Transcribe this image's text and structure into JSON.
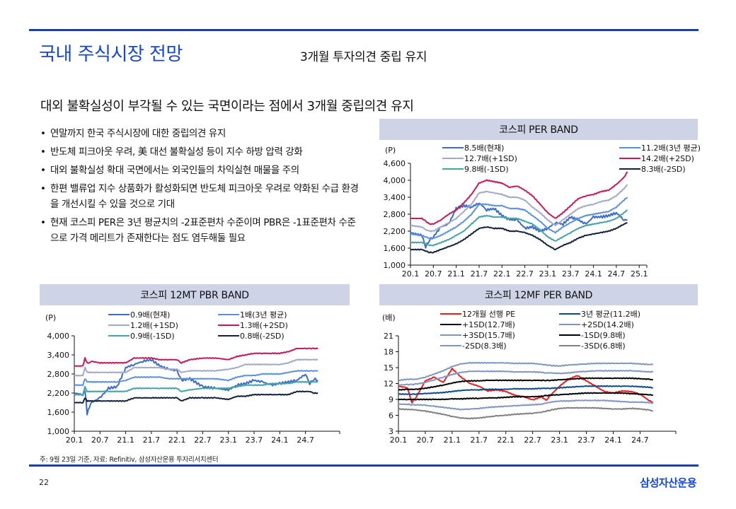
{
  "page": {
    "title": "국내 주식시장 전망",
    "subtitle": "3개월 투자의견 중립 유지",
    "headline": "대외 불확실성이 부각될 수 있는 국면이라는 점에서 3개월 중립의견 유지",
    "bullets": [
      "연말까지 한국 주식시장에 대한 중립의견 유지",
      "반도체 피크아웃 우려, 美 대선 불확실성 등이 지수 하방 압력 강화",
      "대외 불확실성 확대 국면에서는 외국인들의 차익실현 매물을 주의",
      "한편 밸류업 지수 상품화가 활성화되면 반도체 피크아웃 우려로 약화된 수급 환경을 개선시킬 수 있을 것으로 기대",
      "현재 코스피 PER은 3년 평균치의 -2표준편차 수준이며 PBR은 -1표준편차 수준으로 가격 메리트가 존재한다는 점도 염두해둘 필요"
    ],
    "note": "주: 9월 23일 기준, 자료: Refinitiv, 삼성자산운용 투자리서치센터",
    "page_number": "22",
    "brand": "삼성자산운용",
    "accent_color": "#1546d9"
  },
  "chart_data": [
    {
      "id": "per",
      "type": "line",
      "title": "코스피 PER BAND",
      "ylabel": "(P)",
      "xlabel": "",
      "ylim": [
        1000,
        4600
      ],
      "yticks": [
        "1,000",
        "1,600",
        "2,200",
        "2,800",
        "3,400",
        "4,000",
        "4,600"
      ],
      "ytick_values": [
        1000,
        1600,
        2200,
        2800,
        3400,
        4000,
        4600
      ],
      "xlim": [
        0,
        62
      ],
      "xticks": [
        "20.1",
        "20.7",
        "21.1",
        "21.7",
        "22.1",
        "22.7",
        "23.1",
        "23.7",
        "24.1",
        "24.7",
        "25.1"
      ],
      "xtick_values": [
        0,
        6,
        12,
        18,
        24,
        30,
        36,
        42,
        48,
        54,
        60
      ],
      "legend_position": "top",
      "x": [
        0,
        3,
        4,
        5,
        6,
        8,
        10,
        12,
        14,
        16,
        18,
        20,
        22,
        24,
        26,
        28,
        30,
        32,
        34,
        36,
        38,
        40,
        42,
        44,
        46,
        48,
        50,
        52,
        54,
        56,
        56.9
      ],
      "series": [
        {
          "name": "8.5배(현재)",
          "color": "#3c6cc8",
          "values": [
            2150,
            2050,
            1650,
            1900,
            2000,
            2350,
            2450,
            3000,
            3100,
            3050,
            3200,
            2950,
            3000,
            2750,
            2600,
            2600,
            2300,
            2350,
            2200,
            2300,
            2500,
            2450,
            2700,
            2600,
            2450,
            2700,
            2700,
            2750,
            2850,
            2600,
            2600
          ]
        },
        {
          "name": "11.2배(3년 평균)",
          "color": "#5b8fe0",
          "values": [
            2100,
            2050,
            2000,
            1950,
            1950,
            2050,
            2200,
            2350,
            2550,
            2800,
            3150,
            3150,
            3100,
            3100,
            3000,
            3000,
            2950,
            2750,
            2550,
            2300,
            2150,
            2350,
            2500,
            2650,
            2750,
            2800,
            2850,
            2900,
            3050,
            3300,
            3400
          ]
        },
        {
          "name": "12.7배(+1SD)",
          "color": "#a2a8c8",
          "values": [
            2400,
            2350,
            2250,
            2200,
            2200,
            2350,
            2500,
            2650,
            2900,
            3150,
            3550,
            3600,
            3550,
            3500,
            3400,
            3400,
            3300,
            3050,
            2850,
            2600,
            2400,
            2600,
            2800,
            3000,
            3100,
            3150,
            3250,
            3300,
            3450,
            3700,
            3850
          ]
        },
        {
          "name": "14.2배(+2SD)",
          "color": "#c9185a",
          "values": [
            2650,
            2650,
            2550,
            2450,
            2450,
            2600,
            2800,
            2950,
            3200,
            3500,
            3900,
            4000,
            3950,
            3900,
            3750,
            3800,
            3650,
            3450,
            3150,
            2850,
            2650,
            2850,
            3100,
            3350,
            3450,
            3500,
            3600,
            3650,
            3850,
            4100,
            4300
          ]
        },
        {
          "name": "9.8배(-1SD)",
          "color": "#45a3a8",
          "values": [
            1800,
            1800,
            1750,
            1700,
            1700,
            1800,
            1900,
            2050,
            2200,
            2450,
            2700,
            2750,
            2700,
            2700,
            2650,
            2650,
            2550,
            2450,
            2250,
            2000,
            1850,
            2000,
            2150,
            2300,
            2400,
            2450,
            2500,
            2550,
            2650,
            2850,
            2950
          ]
        },
        {
          "name": "8.3배(-2SD)",
          "color": "#13213f",
          "values": [
            1550,
            1550,
            1500,
            1450,
            1450,
            1550,
            1650,
            1750,
            1900,
            2100,
            2300,
            2350,
            2300,
            2300,
            2200,
            2200,
            2150,
            2050,
            1900,
            1700,
            1550,
            1700,
            1800,
            1950,
            2050,
            2100,
            2150,
            2200,
            2300,
            2450,
            2500
          ]
        }
      ]
    },
    {
      "id": "pbr",
      "type": "line",
      "title": "코스피 12MT PBR BAND",
      "ylabel": "(P)",
      "xlabel": "",
      "ylim": [
        1000,
        4000
      ],
      "yticks": [
        "1,000",
        "1,600",
        "2,200",
        "2,800",
        "3,400",
        "4,000"
      ],
      "ytick_values": [
        1000,
        1600,
        2200,
        2800,
        3400,
        4000
      ],
      "xlim": [
        0,
        62
      ],
      "xticks": [
        "20.1",
        "20.7",
        "21.1",
        "21.7",
        "22.1",
        "22.7",
        "23.1",
        "23.7",
        "24.1",
        "24.7"
      ],
      "xtick_values": [
        0,
        6,
        12,
        18,
        24,
        30,
        36,
        42,
        48,
        54
      ],
      "legend_position": "top",
      "x": [
        0,
        2,
        2.5,
        3,
        3.5,
        4,
        6,
        8,
        10,
        12,
        14,
        16,
        18,
        20,
        22,
        24,
        25,
        27,
        30,
        33,
        36,
        38,
        40,
        42,
        44,
        46,
        48,
        50,
        52,
        54,
        55,
        56,
        56.9
      ],
      "series": [
        {
          "name": "0.9배(현재)",
          "color": "#3c6cc8",
          "values": [
            2200,
            2150,
            2300,
            1550,
            1750,
            1900,
            2050,
            2350,
            2400,
            3000,
            3100,
            3200,
            3250,
            3050,
            2950,
            2900,
            2600,
            2650,
            2400,
            2350,
            2300,
            2450,
            2500,
            2600,
            2550,
            2450,
            2500,
            2550,
            2600,
            2800,
            2500,
            2650,
            2600
          ]
        },
        {
          "name": "1배(3년 평균)",
          "color": "#5b8fe0",
          "values": [
            2450,
            2450,
            2650,
            2550,
            2550,
            2550,
            2550,
            2550,
            2550,
            2600,
            2700,
            2700,
            2700,
            2700,
            2650,
            2650,
            2650,
            2650,
            2650,
            2650,
            2600,
            2700,
            2750,
            2750,
            2800,
            2800,
            2800,
            2850,
            2900,
            2900,
            2900,
            2900,
            2900
          ]
        },
        {
          "name": "1.2배(+1SD)",
          "color": "#a2a8c8",
          "values": [
            2750,
            2750,
            3000,
            2850,
            2850,
            2850,
            2850,
            2850,
            2850,
            2850,
            3000,
            3000,
            3000,
            3000,
            2950,
            2950,
            2850,
            2900,
            2900,
            2900,
            2950,
            3000,
            3100,
            3100,
            3100,
            3100,
            3100,
            3150,
            3250,
            3250,
            3250,
            3250,
            3250
          ]
        },
        {
          "name": "1.3배(+2SD)",
          "color": "#c9185a",
          "values": [
            3050,
            3050,
            3300,
            3150,
            3150,
            3200,
            3150,
            3150,
            3150,
            3150,
            3300,
            3300,
            3300,
            3250,
            3250,
            3250,
            3150,
            3250,
            3300,
            3300,
            3250,
            3350,
            3400,
            3450,
            3450,
            3450,
            3450,
            3500,
            3600,
            3600,
            3600,
            3600,
            3600
          ]
        },
        {
          "name": "0.9배(-1SD)",
          "color": "#45a3a8",
          "values": [
            2150,
            2150,
            2400,
            2250,
            2250,
            2250,
            2250,
            2250,
            2250,
            2250,
            2350,
            2350,
            2350,
            2350,
            2350,
            2350,
            2250,
            2300,
            2350,
            2350,
            2350,
            2400,
            2450,
            2450,
            2450,
            2500,
            2500,
            2500,
            2550,
            2550,
            2550,
            2550,
            2550
          ]
        },
        {
          "name": "0.8배(-2SD)",
          "color": "#13213f",
          "values": [
            1900,
            1900,
            2050,
            1950,
            1950,
            1950,
            1950,
            1950,
            1950,
            1950,
            2050,
            2050,
            2050,
            2050,
            2050,
            2050,
            1950,
            2050,
            2050,
            2050,
            2000,
            2100,
            2100,
            2150,
            2150,
            2150,
            2150,
            2150,
            2250,
            2250,
            2250,
            2200,
            2200
          ]
        }
      ]
    },
    {
      "id": "mfper",
      "type": "line",
      "title": "코스피 12MF PER BAND",
      "ylabel": "(배)",
      "xlabel": "",
      "ylim": [
        3,
        21
      ],
      "yticks": [
        "3",
        "6",
        "9",
        "12",
        "15",
        "18",
        "21"
      ],
      "ytick_values": [
        3,
        6,
        9,
        12,
        15,
        18,
        21
      ],
      "xlim": [
        0,
        62
      ],
      "xticks": [
        "20.1",
        "20.7",
        "21.1",
        "21.7",
        "22.1",
        "22.7",
        "23.1",
        "23.7",
        "24.1",
        "24.7"
      ],
      "xtick_values": [
        0,
        6,
        12,
        18,
        24,
        30,
        36,
        42,
        48,
        54
      ],
      "legend_position": "top",
      "x": [
        0,
        2,
        3,
        4,
        6,
        8,
        10,
        12,
        14,
        16,
        18,
        20,
        22,
        24,
        26,
        28,
        30,
        32,
        33,
        34,
        36,
        38,
        40,
        42,
        44,
        46,
        48,
        50,
        52,
        54,
        56,
        56.9
      ],
      "series": [
        {
          "name": "12개월 선행 PE",
          "color": "#ee1c1c",
          "values": [
            11.5,
            11.2,
            8.4,
            9.5,
            12.5,
            13.2,
            12.2,
            14.8,
            13.2,
            12.0,
            11.5,
            10.6,
            10.8,
            10.5,
            9.8,
            9.5,
            8.9,
            9.5,
            8.8,
            9.8,
            11.5,
            12.8,
            13.5,
            12.5,
            11.5,
            10.5,
            10.2,
            10.6,
            10.5,
            10.0,
            8.8,
            8.4
          ]
        },
        {
          "name": "3년 평균(11.2배)",
          "color": "#0b4a8c",
          "values": [
            10.0,
            10.0,
            10.0,
            10.0,
            10.1,
            10.2,
            10.3,
            10.5,
            10.7,
            10.8,
            10.8,
            10.9,
            10.9,
            10.9,
            11.0,
            11.0,
            11.0,
            11.1,
            11.1,
            11.1,
            11.2,
            11.3,
            11.4,
            11.5,
            11.5,
            11.5,
            11.5,
            11.5,
            11.5,
            11.4,
            11.3,
            11.2
          ]
        },
        {
          "name": "+1SD(12.7배)",
          "color": "#000000",
          "values": [
            10.8,
            10.9,
            10.9,
            10.9,
            11.1,
            11.4,
            11.7,
            12.1,
            12.4,
            12.5,
            12.5,
            12.6,
            12.6,
            12.6,
            12.6,
            12.6,
            12.6,
            12.6,
            12.6,
            12.6,
            12.7,
            12.8,
            12.9,
            13.0,
            13.0,
            13.0,
            13.0,
            13.0,
            13.0,
            12.9,
            12.8,
            12.7
          ]
        },
        {
          "name": "+2SD(14.2배)",
          "color": "#7f96c4",
          "values": [
            11.7,
            11.8,
            11.8,
            11.9,
            12.2,
            12.7,
            13.2,
            13.7,
            14.1,
            14.3,
            14.3,
            14.3,
            14.3,
            14.3,
            14.2,
            14.2,
            14.2,
            14.1,
            14.0,
            14.0,
            13.9,
            14.0,
            14.2,
            14.3,
            14.4,
            14.4,
            14.4,
            14.4,
            14.4,
            14.3,
            14.2,
            14.2
          ]
        },
        {
          "name": "+3SD(15.7배)",
          "color": "#7f96c4",
          "values": [
            12.6,
            12.8,
            12.8,
            12.8,
            13.2,
            13.8,
            14.4,
            15.2,
            15.7,
            15.9,
            15.9,
            15.9,
            15.9,
            15.9,
            15.8,
            15.8,
            15.8,
            15.6,
            15.5,
            15.4,
            15.3,
            15.5,
            15.6,
            15.7,
            15.8,
            15.8,
            15.8,
            15.8,
            15.8,
            15.7,
            15.6,
            15.6
          ]
        },
        {
          "name": "-1SD(9.8배)",
          "color": "#000000",
          "values": [
            9.0,
            9.0,
            9.0,
            9.0,
            9.0,
            9.0,
            9.0,
            9.1,
            9.1,
            9.2,
            9.2,
            9.3,
            9.3,
            9.4,
            9.5,
            9.5,
            9.5,
            9.6,
            9.7,
            9.8,
            9.9,
            10.0,
            10.1,
            10.2,
            10.2,
            10.2,
            10.2,
            10.2,
            10.1,
            10.0,
            9.9,
            9.8
          ]
        },
        {
          "name": "-2SD(8.3배)",
          "color": "#7f96c4",
          "values": [
            8.1,
            8.1,
            8.0,
            8.0,
            7.9,
            7.7,
            7.5,
            7.3,
            7.1,
            7.2,
            7.3,
            7.5,
            7.6,
            7.7,
            7.8,
            7.9,
            8.0,
            8.1,
            8.3,
            8.5,
            8.7,
            8.7,
            8.8,
            8.8,
            8.8,
            8.8,
            8.7,
            8.6,
            8.5,
            8.5,
            8.4,
            8.3
          ]
        },
        {
          "name": "-3SD(6.8배)",
          "color": "#808080",
          "values": [
            7.2,
            7.1,
            7.1,
            7.0,
            6.8,
            6.5,
            6.2,
            5.8,
            5.5,
            5.4,
            5.5,
            5.7,
            5.9,
            6.0,
            6.2,
            6.3,
            6.4,
            6.6,
            6.8,
            7.0,
            7.3,
            7.4,
            7.4,
            7.4,
            7.4,
            7.3,
            7.2,
            7.2,
            7.3,
            7.2,
            7.0,
            6.8
          ]
        }
      ]
    }
  ]
}
